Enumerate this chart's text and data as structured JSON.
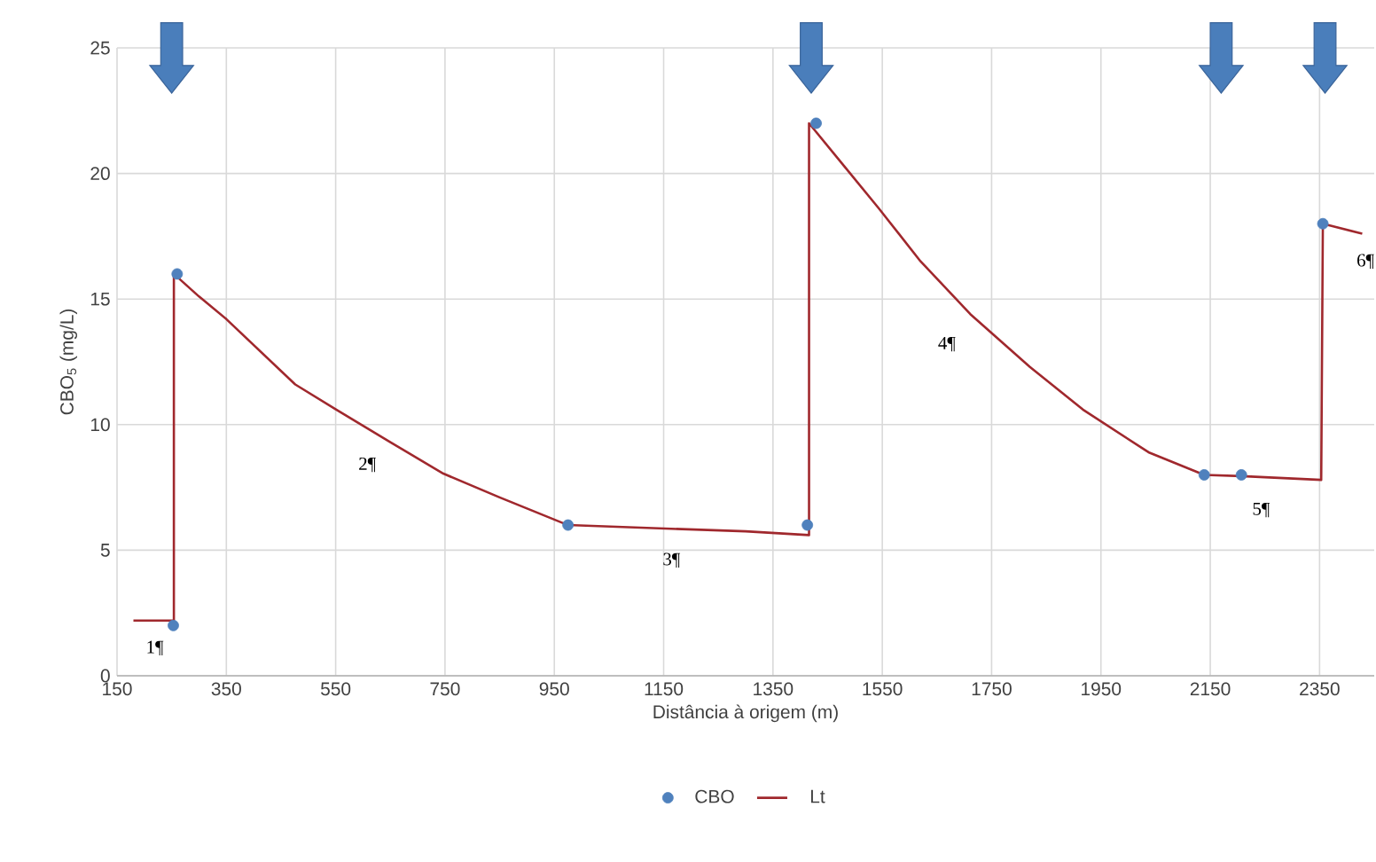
{
  "chart_data": {
    "type": "line",
    "xlabel": "Distância à origem (m)",
    "ylabel": "CBO$_{5}$ (mg/L)",
    "xlim": [
      150,
      2450
    ],
    "xticks": [
      150,
      350,
      550,
      750,
      950,
      1150,
      1350,
      1550,
      1750,
      1950,
      2150,
      2350
    ],
    "ylim": [
      0,
      25
    ],
    "yticks": [
      0,
      5,
      10,
      15,
      20,
      25
    ],
    "grid": true,
    "legend": "bottom",
    "series": [
      {
        "name": "CBO",
        "type": "scatter",
        "marker": "circle",
        "color": "#4f81bd",
        "x": [
          253,
          260,
          975,
          1413,
          1429,
          2139,
          2207,
          2356
        ],
        "values": [
          2,
          16,
          6,
          6,
          22,
          8,
          8,
          18
        ]
      },
      {
        "name": "Lt",
        "marker": "none",
        "color": "#a0282d",
        "x": [
          180,
          254,
          254,
          300,
          350,
          476,
          551,
          650,
          747,
          850,
          975,
          1300,
          1416,
          1416,
          1480,
          1544,
          1620,
          1711,
          1820,
          1917,
          2037,
          2139,
          2207,
          2353,
          2356,
          2428
        ],
        "values": [
          2.2,
          2.2,
          16,
          15.1,
          14.2,
          11.6,
          10.6,
          9.3,
          8.05,
          7.1,
          6,
          5.75,
          5.6,
          22,
          20.3,
          18.6,
          16.5,
          14.4,
          12.3,
          10.6,
          8.9,
          8,
          7.95,
          7.8,
          18,
          17.6
        ]
      }
    ],
    "annotations": [
      "1¶",
      "2¶",
      "3¶",
      "4¶",
      "5¶",
      "6¶"
    ]
  }
}
